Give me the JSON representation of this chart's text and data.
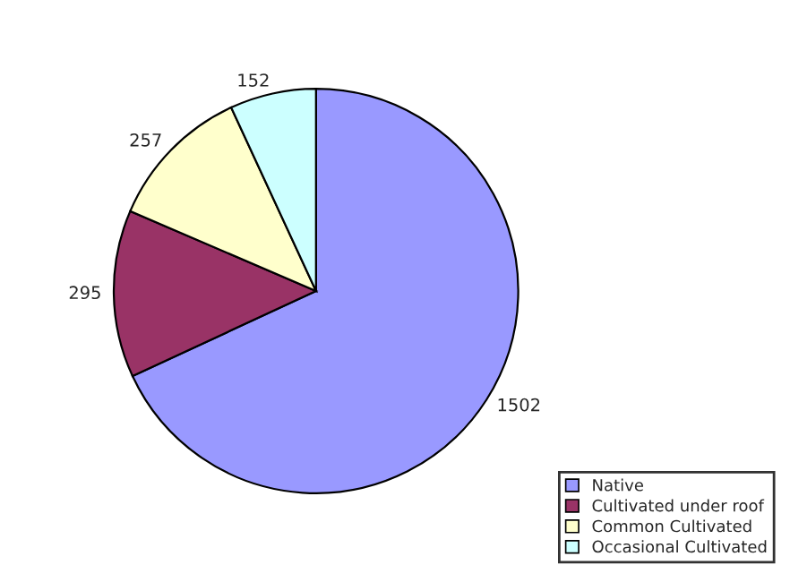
{
  "chart_data": {
    "type": "pie",
    "categories": [
      "Native",
      "Cultivated under roof",
      "Common Cultivated",
      "Occasional Cultivated"
    ],
    "values": [
      1502,
      295,
      257,
      152
    ],
    "colors": [
      "#9999ff",
      "#993366",
      "#ffffcc",
      "#ccffff"
    ],
    "data_labels": true,
    "legend": "bottom right"
  }
}
